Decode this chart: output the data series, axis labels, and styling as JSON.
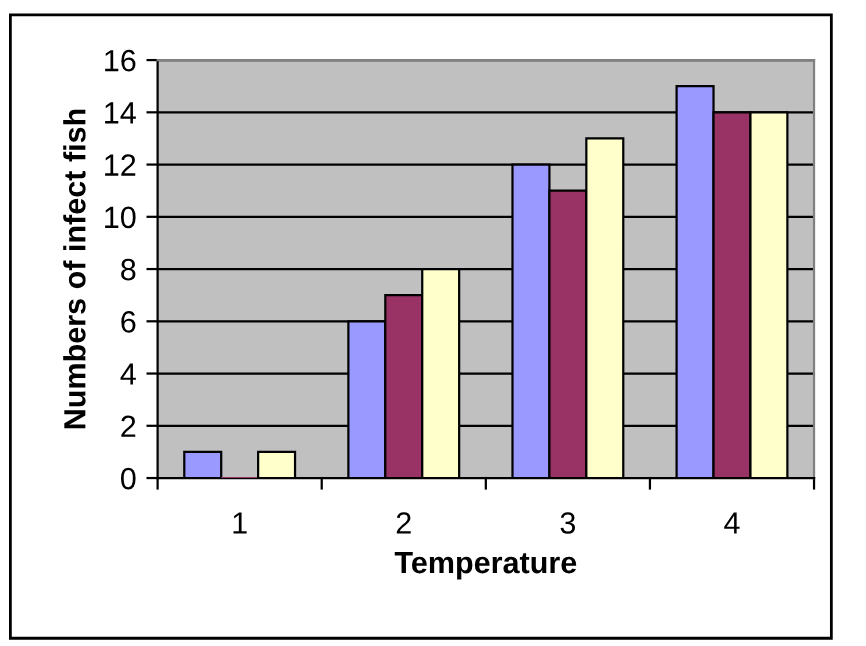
{
  "chart_data": {
    "type": "bar",
    "xlabel": "Temperature",
    "ylabel": "Numbers of infect fish",
    "categories": [
      "1",
      "2",
      "3",
      "4"
    ],
    "series": [
      {
        "color": "#9999ff",
        "values": [
          1,
          6,
          12,
          15
        ]
      },
      {
        "color": "#993366",
        "values": [
          0,
          7,
          11,
          14
        ]
      },
      {
        "color": "#ffffcc",
        "values": [
          1,
          8,
          13,
          14
        ]
      }
    ],
    "ylim": [
      0,
      16
    ],
    "yticks": [
      0,
      2,
      4,
      6,
      8,
      10,
      12,
      14,
      16
    ],
    "grid": "y"
  }
}
